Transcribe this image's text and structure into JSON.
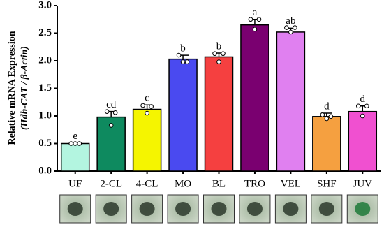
{
  "chart_data": {
    "type": "bar",
    "y_label": "Relative mRNA Expression",
    "y_label_2": "(Hdh-CAT / β-Actin)",
    "categories": [
      "UF",
      "2-CL",
      "4-CL",
      "MO",
      "BL",
      "TRO",
      "VEL",
      "SHF",
      "JUV"
    ],
    "values": [
      0.5,
      0.98,
      1.12,
      2.03,
      2.07,
      2.65,
      2.52,
      0.99,
      1.08
    ],
    "errors": [
      0.01,
      0.1,
      0.08,
      0.07,
      0.07,
      0.1,
      0.07,
      0.06,
      0.1
    ],
    "points": [
      [
        0.5,
        0.5,
        0.5
      ],
      [
        1.08,
        1.06,
        0.83
      ],
      [
        1.19,
        1.17,
        1.05
      ],
      [
        2.1,
        1.98,
        1.98
      ],
      [
        2.13,
        2.13,
        1.98
      ],
      [
        2.75,
        2.75,
        2.57
      ],
      [
        2.6,
        2.6,
        2.52
      ],
      [
        1.02,
        0.99,
        0.95
      ],
      [
        1.18,
        1.18,
        1.0
      ]
    ],
    "letters": [
      "e",
      "cd",
      "c",
      "b",
      "b",
      "a",
      "ab",
      "d",
      "d"
    ],
    "colors": [
      "#b3f5e0",
      "#0e8a5f",
      "#f5f500",
      "#4a4af0",
      "#f54040",
      "#7a0070",
      "#e080f0",
      "#f5a040",
      "#f050d0"
    ],
    "ylim": [
      0,
      3
    ],
    "yticks": [
      {
        "value": 0,
        "label": "0.0"
      },
      0.5,
      {
        "value": 1,
        "label": "1.0"
      },
      1.5,
      {
        "value": 2,
        "label": "2.0"
      },
      2.5,
      {
        "value": 3,
        "label": "3.0"
      }
    ]
  }
}
